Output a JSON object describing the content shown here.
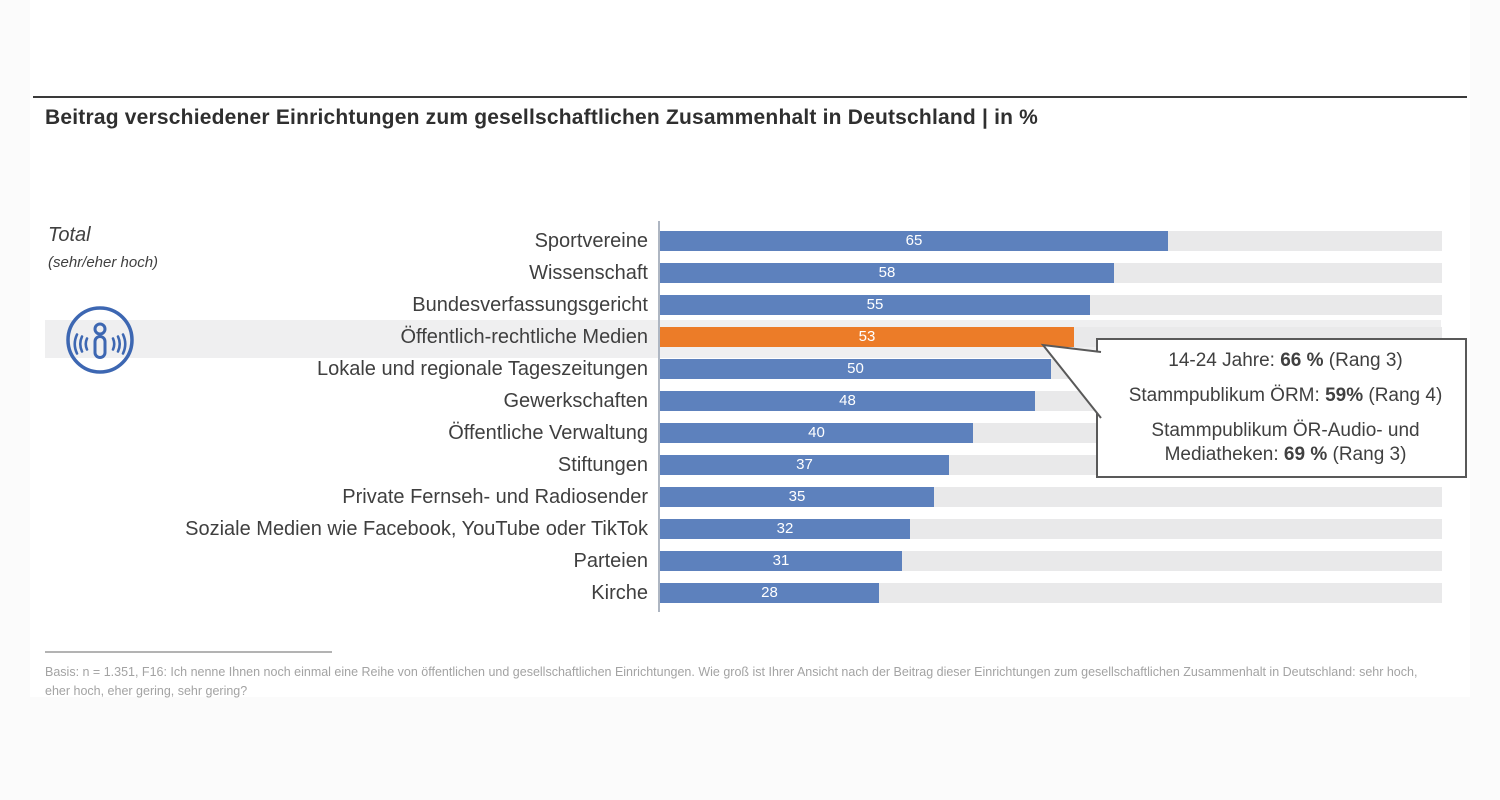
{
  "title": "Beitrag verschiedener Einrichtungen zum gesellschaftlichen Zusammenhalt in Deutschland | in %",
  "sidebar": {
    "total_label": "Total",
    "total_sub": "(sehr/eher hoch)",
    "icon": "broadcast-person-icon",
    "icon_color": "#3d67b2"
  },
  "chart_data": {
    "type": "bar",
    "orientation": "horizontal",
    "title": "Beitrag verschiedener Einrichtungen zum gesellschaftlichen Zusammenhalt in Deutschland | in %",
    "categories": [
      "Sportvereine",
      "Wissenschaft",
      "Bundesverfassungsgericht",
      "Öffentlich-rechtliche Medien",
      "Lokale und regionale Tageszeitungen",
      "Gewerkschaften",
      "Öffentliche Verwaltung",
      "Stiftungen",
      "Private Fernseh- und Radiosender",
      "Soziale Medien wie Facebook, YouTube oder TikTok",
      "Parteien",
      "Kirche"
    ],
    "values": [
      65,
      58,
      55,
      53,
      50,
      48,
      40,
      37,
      35,
      32,
      31,
      28
    ],
    "highlight_index": 3,
    "highlight_category": "Öffentlich-rechtliche Medien",
    "xlim": [
      0,
      100
    ],
    "grid": false,
    "colors": {
      "bar": "#5d81bd",
      "highlight_bar": "#ec7c28",
      "track": "#e9e9ea",
      "row_band": "#efeff0",
      "value_text": "#ffffff"
    }
  },
  "callout": {
    "lines": [
      {
        "pre": "14-24 Jahre: ",
        "bold": "66 %",
        "post": " (Rang 3)"
      },
      {
        "pre": "Stammpublikum ÖRM: ",
        "bold": "59%",
        "post": " (Rang 4)"
      },
      {
        "pre": "Stammpublikum ÖR-Audio- und Mediatheken: ",
        "bold": "69 %",
        "post": " (Rang 3)"
      }
    ]
  },
  "footer": {
    "basis": "Basis: n = 1.351, F16: Ich nenne Ihnen noch einmal eine Reihe von öffentlichen und gesellschaftlichen Einrichtungen. Wie groß ist Ihrer Ansicht nach der Beitrag dieser Einrichtungen zum gesellschaftlichen Zusammenhalt in Deutschland: sehr hoch, eher hoch, eher gering, sehr gering?"
  }
}
